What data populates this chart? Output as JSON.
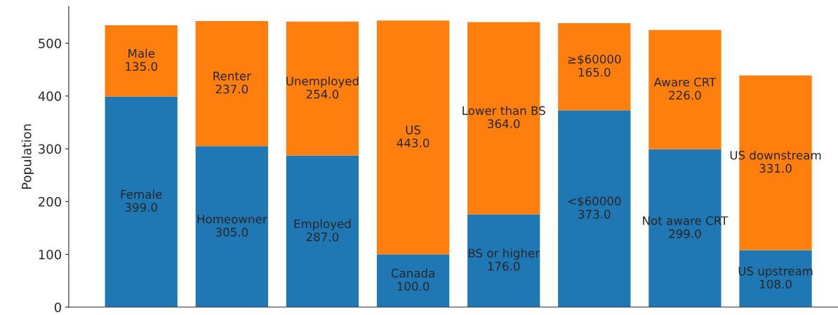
{
  "chart_data": {
    "type": "bar",
    "stacked": true,
    "ylabel": "Population",
    "categories": [
      null,
      null,
      null,
      null,
      null,
      null,
      null,
      null
    ],
    "series": [
      {
        "color": "#1f77b4",
        "values": [
          399,
          305,
          287,
          100,
          176,
          373,
          299,
          108
        ],
        "value_labels": [
          "Female\n399.0",
          "Homeowner\n305.0",
          "Employed\n287.0",
          "Canada\n100.0",
          "BS or higher\n176.0",
          "<$60000\n373.0",
          "Not aware CRT\n299.0",
          "US upstream\n108.0"
        ]
      },
      {
        "color": "#ff7f0e",
        "values": [
          135,
          237,
          254,
          443,
          364,
          165,
          226,
          331
        ],
        "value_labels": [
          "Male\n135.0",
          "Renter\n237.0",
          "Unemployed\n254.0",
          "US\n443.0",
          "Lower than BS\n364.0",
          "≥$60000\n165.0",
          "Aware CRT\n226.0",
          "US downstream\n331.0"
        ]
      }
    ],
    "ylim": [
      0,
      570
    ],
    "yticks": [
      0,
      100,
      200,
      300,
      400,
      500
    ],
    "tick_labels": "y",
    "grid": false,
    "legend": false
  }
}
